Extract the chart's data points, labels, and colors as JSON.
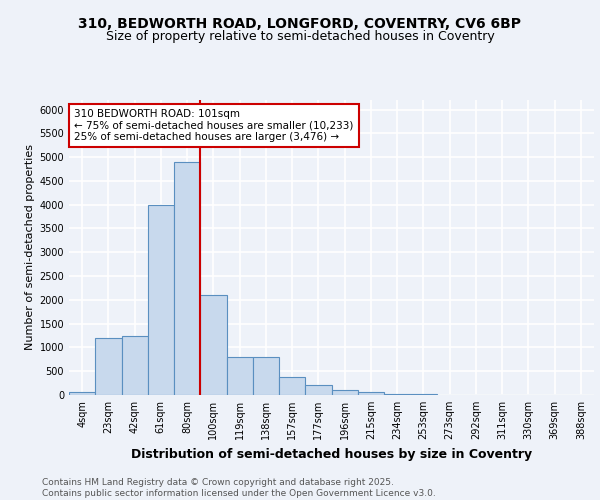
{
  "title_line1": "310, BEDWORTH ROAD, LONGFORD, COVENTRY, CV6 6BP",
  "title_line2": "Size of property relative to semi-detached houses in Coventry",
  "xlabel": "Distribution of semi-detached houses by size in Coventry",
  "ylabel": "Number of semi-detached properties",
  "categories": [
    "4sqm",
    "23sqm",
    "42sqm",
    "61sqm",
    "80sqm",
    "100sqm",
    "119sqm",
    "138sqm",
    "157sqm",
    "177sqm",
    "196sqm",
    "215sqm",
    "234sqm",
    "253sqm",
    "273sqm",
    "292sqm",
    "311sqm",
    "330sqm",
    "369sqm",
    "388sqm"
  ],
  "values": [
    70,
    1200,
    1250,
    4000,
    4900,
    2100,
    800,
    800,
    375,
    220,
    110,
    60,
    30,
    15,
    8,
    5,
    3,
    2,
    1,
    1
  ],
  "bar_color": "#c8d9ed",
  "bar_edge_color": "#5a8fc0",
  "bar_edge_width": 0.8,
  "red_line_x": 4.5,
  "red_line_color": "#cc0000",
  "annotation_text": "310 BEDWORTH ROAD: 101sqm\n← 75% of semi-detached houses are smaller (10,233)\n25% of semi-detached houses are larger (3,476) →",
  "annotation_box_color": "#ffffff",
  "annotation_box_edge": "#cc0000",
  "ylim": [
    0,
    6200
  ],
  "yticks": [
    0,
    500,
    1000,
    1500,
    2000,
    2500,
    3000,
    3500,
    4000,
    4500,
    5000,
    5500,
    6000
  ],
  "footnote": "Contains HM Land Registry data © Crown copyright and database right 2025.\nContains public sector information licensed under the Open Government Licence v3.0.",
  "bg_color": "#eef2f9",
  "plot_bg_color": "#eef2f9",
  "grid_color": "#ffffff",
  "title_fontsize": 10,
  "subtitle_fontsize": 9,
  "xlabel_fontsize": 9,
  "ylabel_fontsize": 8,
  "tick_fontsize": 7,
  "annotation_fontsize": 7.5,
  "footnote_fontsize": 6.5
}
